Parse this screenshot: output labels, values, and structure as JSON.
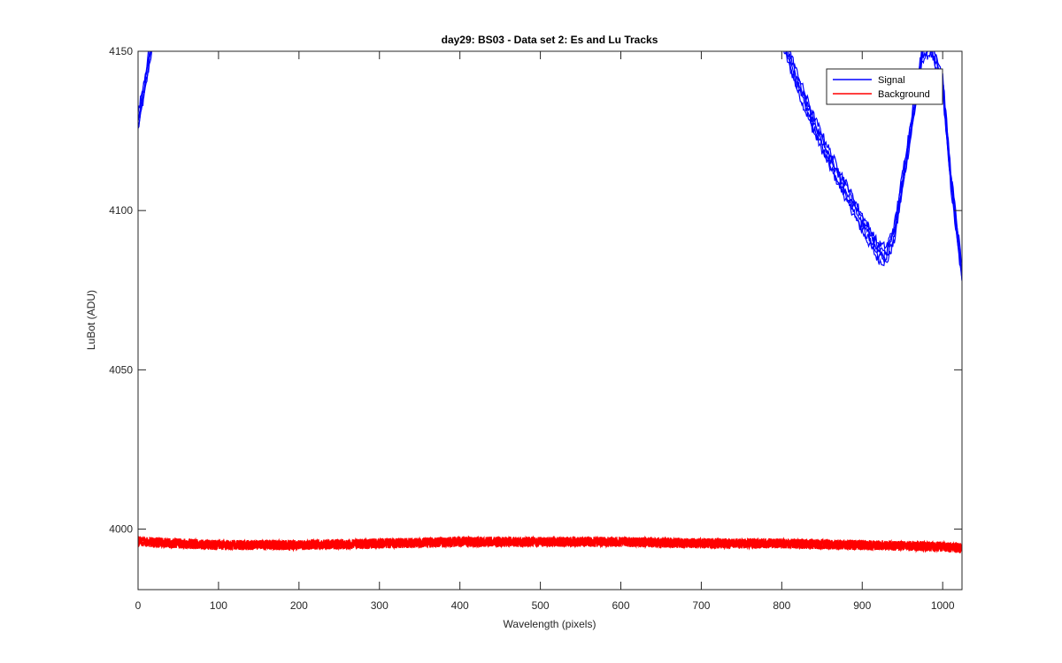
{
  "chart_data": {
    "type": "line",
    "title": "day29: BS03 - Data set 2: Es and Lu Tracks",
    "xlabel": "Wavelength (pixels)",
    "ylabel": "LuBot (ADU)",
    "xlim": [
      0,
      1024
    ],
    "ylim": [
      3981,
      4150
    ],
    "xticks": [
      0,
      100,
      200,
      300,
      400,
      500,
      600,
      700,
      800,
      900,
      1000
    ],
    "yticks": [
      4000,
      4050,
      4100,
      4150
    ],
    "grid": false,
    "legend_position": "top-right",
    "series": [
      {
        "name": "Signal",
        "color": "#0000ff",
        "tracks": 5,
        "x": [
          0,
          5,
          10,
          15,
          20,
          800,
          820,
          840,
          860,
          880,
          900,
          920,
          930,
          940,
          960,
          975,
          985,
          1000,
          1010,
          1024
        ],
        "y": [
          4128,
          4135,
          4142,
          4150,
          4155,
          4155,
          4140,
          4127,
          4116,
          4106,
          4096,
          4087,
          4086,
          4093,
          4125,
          4150,
          4152,
          4140,
          4110,
          4080
        ]
      },
      {
        "name": "Background",
        "color": "#ff0000",
        "tracks": 5,
        "x": [
          0,
          100,
          200,
          300,
          400,
          500,
          600,
          700,
          800,
          900,
          1000,
          1024
        ],
        "y": [
          3996,
          3995,
          3995,
          3995.5,
          3996,
          3996,
          3996,
          3995.5,
          3995.5,
          3995,
          3994.5,
          3994
        ]
      }
    ]
  }
}
